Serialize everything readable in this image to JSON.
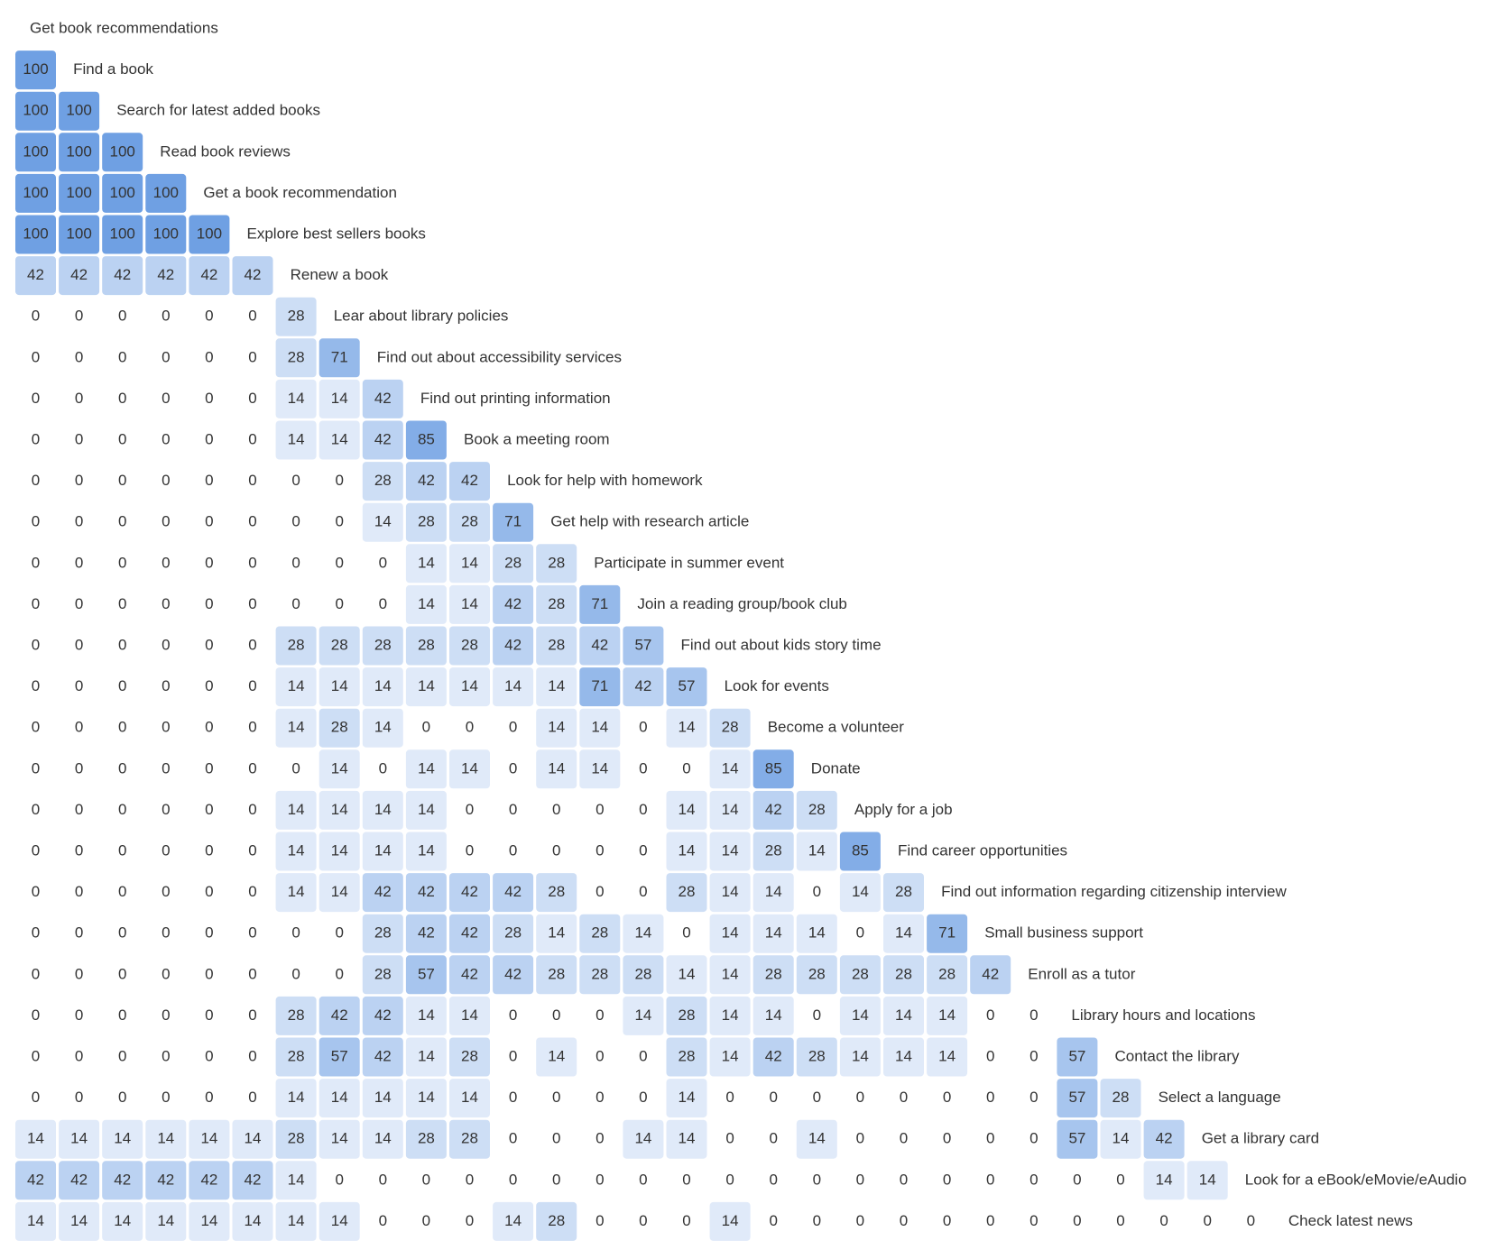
{
  "chart_data": {
    "type": "heatmap",
    "color": "#5f95e0",
    "labels": [
      "Get book recommendations",
      "Find a book",
      "Search for latest added books",
      "Read book reviews",
      "Get a book recommendation",
      "Explore best sellers books",
      "Renew a book",
      "Lear about library policies",
      "Find out about accessibility services",
      "Find out printing information",
      "Book a meeting room",
      "Look for help with homework",
      "Get help with research article",
      "Participate in summer event",
      "Join a reading group/book club",
      "Find out about kids story time",
      "Look for events",
      "Become a volunteer",
      "Donate",
      "Apply for a job",
      "Find career opportunities",
      "Find out information regarding citizenship interview",
      "Small business support",
      "Enroll as a tutor",
      "Library hours and locations",
      "Contact the library",
      "Select a language",
      "Get a library card",
      "Look for a eBook/eMovie/eAudio",
      "Check latest news"
    ],
    "rows": [
      [],
      [
        100
      ],
      [
        100,
        100
      ],
      [
        100,
        100,
        100
      ],
      [
        100,
        100,
        100,
        100
      ],
      [
        100,
        100,
        100,
        100,
        100
      ],
      [
        42,
        42,
        42,
        42,
        42,
        42
      ],
      [
        0,
        0,
        0,
        0,
        0,
        0,
        28
      ],
      [
        0,
        0,
        0,
        0,
        0,
        0,
        28,
        71
      ],
      [
        0,
        0,
        0,
        0,
        0,
        0,
        14,
        14,
        42
      ],
      [
        0,
        0,
        0,
        0,
        0,
        0,
        14,
        14,
        42,
        85
      ],
      [
        0,
        0,
        0,
        0,
        0,
        0,
        0,
        0,
        28,
        42,
        42
      ],
      [
        0,
        0,
        0,
        0,
        0,
        0,
        0,
        0,
        14,
        28,
        28,
        71
      ],
      [
        0,
        0,
        0,
        0,
        0,
        0,
        0,
        0,
        0,
        14,
        14,
        28,
        28
      ],
      [
        0,
        0,
        0,
        0,
        0,
        0,
        0,
        0,
        0,
        14,
        14,
        42,
        28,
        71
      ],
      [
        0,
        0,
        0,
        0,
        0,
        0,
        28,
        28,
        28,
        28,
        28,
        42,
        28,
        42,
        57
      ],
      [
        0,
        0,
        0,
        0,
        0,
        0,
        14,
        14,
        14,
        14,
        14,
        14,
        14,
        71,
        42,
        57
      ],
      [
        0,
        0,
        0,
        0,
        0,
        0,
        14,
        28,
        14,
        0,
        0,
        0,
        14,
        14,
        0,
        14,
        28
      ],
      [
        0,
        0,
        0,
        0,
        0,
        0,
        0,
        14,
        0,
        14,
        14,
        0,
        14,
        14,
        0,
        0,
        14,
        85
      ],
      [
        0,
        0,
        0,
        0,
        0,
        0,
        14,
        14,
        14,
        14,
        0,
        0,
        0,
        0,
        0,
        14,
        14,
        42,
        28
      ],
      [
        0,
        0,
        0,
        0,
        0,
        0,
        14,
        14,
        14,
        14,
        0,
        0,
        0,
        0,
        0,
        14,
        14,
        28,
        14,
        85
      ],
      [
        0,
        0,
        0,
        0,
        0,
        0,
        14,
        14,
        42,
        42,
        42,
        42,
        28,
        0,
        0,
        28,
        14,
        14,
        0,
        14,
        28
      ],
      [
        0,
        0,
        0,
        0,
        0,
        0,
        0,
        0,
        28,
        42,
        42,
        28,
        14,
        28,
        14,
        0,
        14,
        14,
        14,
        0,
        14,
        71
      ],
      [
        0,
        0,
        0,
        0,
        0,
        0,
        0,
        0,
        28,
        57,
        42,
        42,
        28,
        28,
        28,
        14,
        14,
        28,
        28,
        28,
        28,
        28,
        42
      ],
      [
        0,
        0,
        0,
        0,
        0,
        0,
        28,
        42,
        42,
        14,
        14,
        0,
        0,
        0,
        14,
        28,
        14,
        14,
        0,
        14,
        14,
        14,
        0,
        0
      ],
      [
        0,
        0,
        0,
        0,
        0,
        0,
        28,
        57,
        42,
        14,
        28,
        0,
        14,
        0,
        0,
        28,
        14,
        42,
        28,
        14,
        14,
        14,
        0,
        0,
        57
      ],
      [
        0,
        0,
        0,
        0,
        0,
        0,
        14,
        14,
        14,
        14,
        14,
        0,
        0,
        0,
        0,
        14,
        0,
        0,
        0,
        0,
        0,
        0,
        0,
        0,
        57,
        28
      ],
      [
        14,
        14,
        14,
        14,
        14,
        14,
        28,
        14,
        14,
        28,
        28,
        0,
        0,
        0,
        14,
        14,
        0,
        0,
        14,
        0,
        0,
        0,
        0,
        0,
        57,
        14,
        42
      ],
      [
        42,
        42,
        42,
        42,
        42,
        42,
        14,
        0,
        0,
        0,
        0,
        0,
        0,
        0,
        0,
        0,
        0,
        0,
        0,
        0,
        0,
        0,
        0,
        0,
        0,
        0,
        14,
        14
      ],
      [
        14,
        14,
        14,
        14,
        14,
        14,
        14,
        14,
        0,
        0,
        0,
        14,
        28,
        0,
        0,
        0,
        14,
        0,
        0,
        0,
        0,
        0,
        0,
        0,
        0,
        0,
        0,
        0,
        0
      ]
    ]
  }
}
